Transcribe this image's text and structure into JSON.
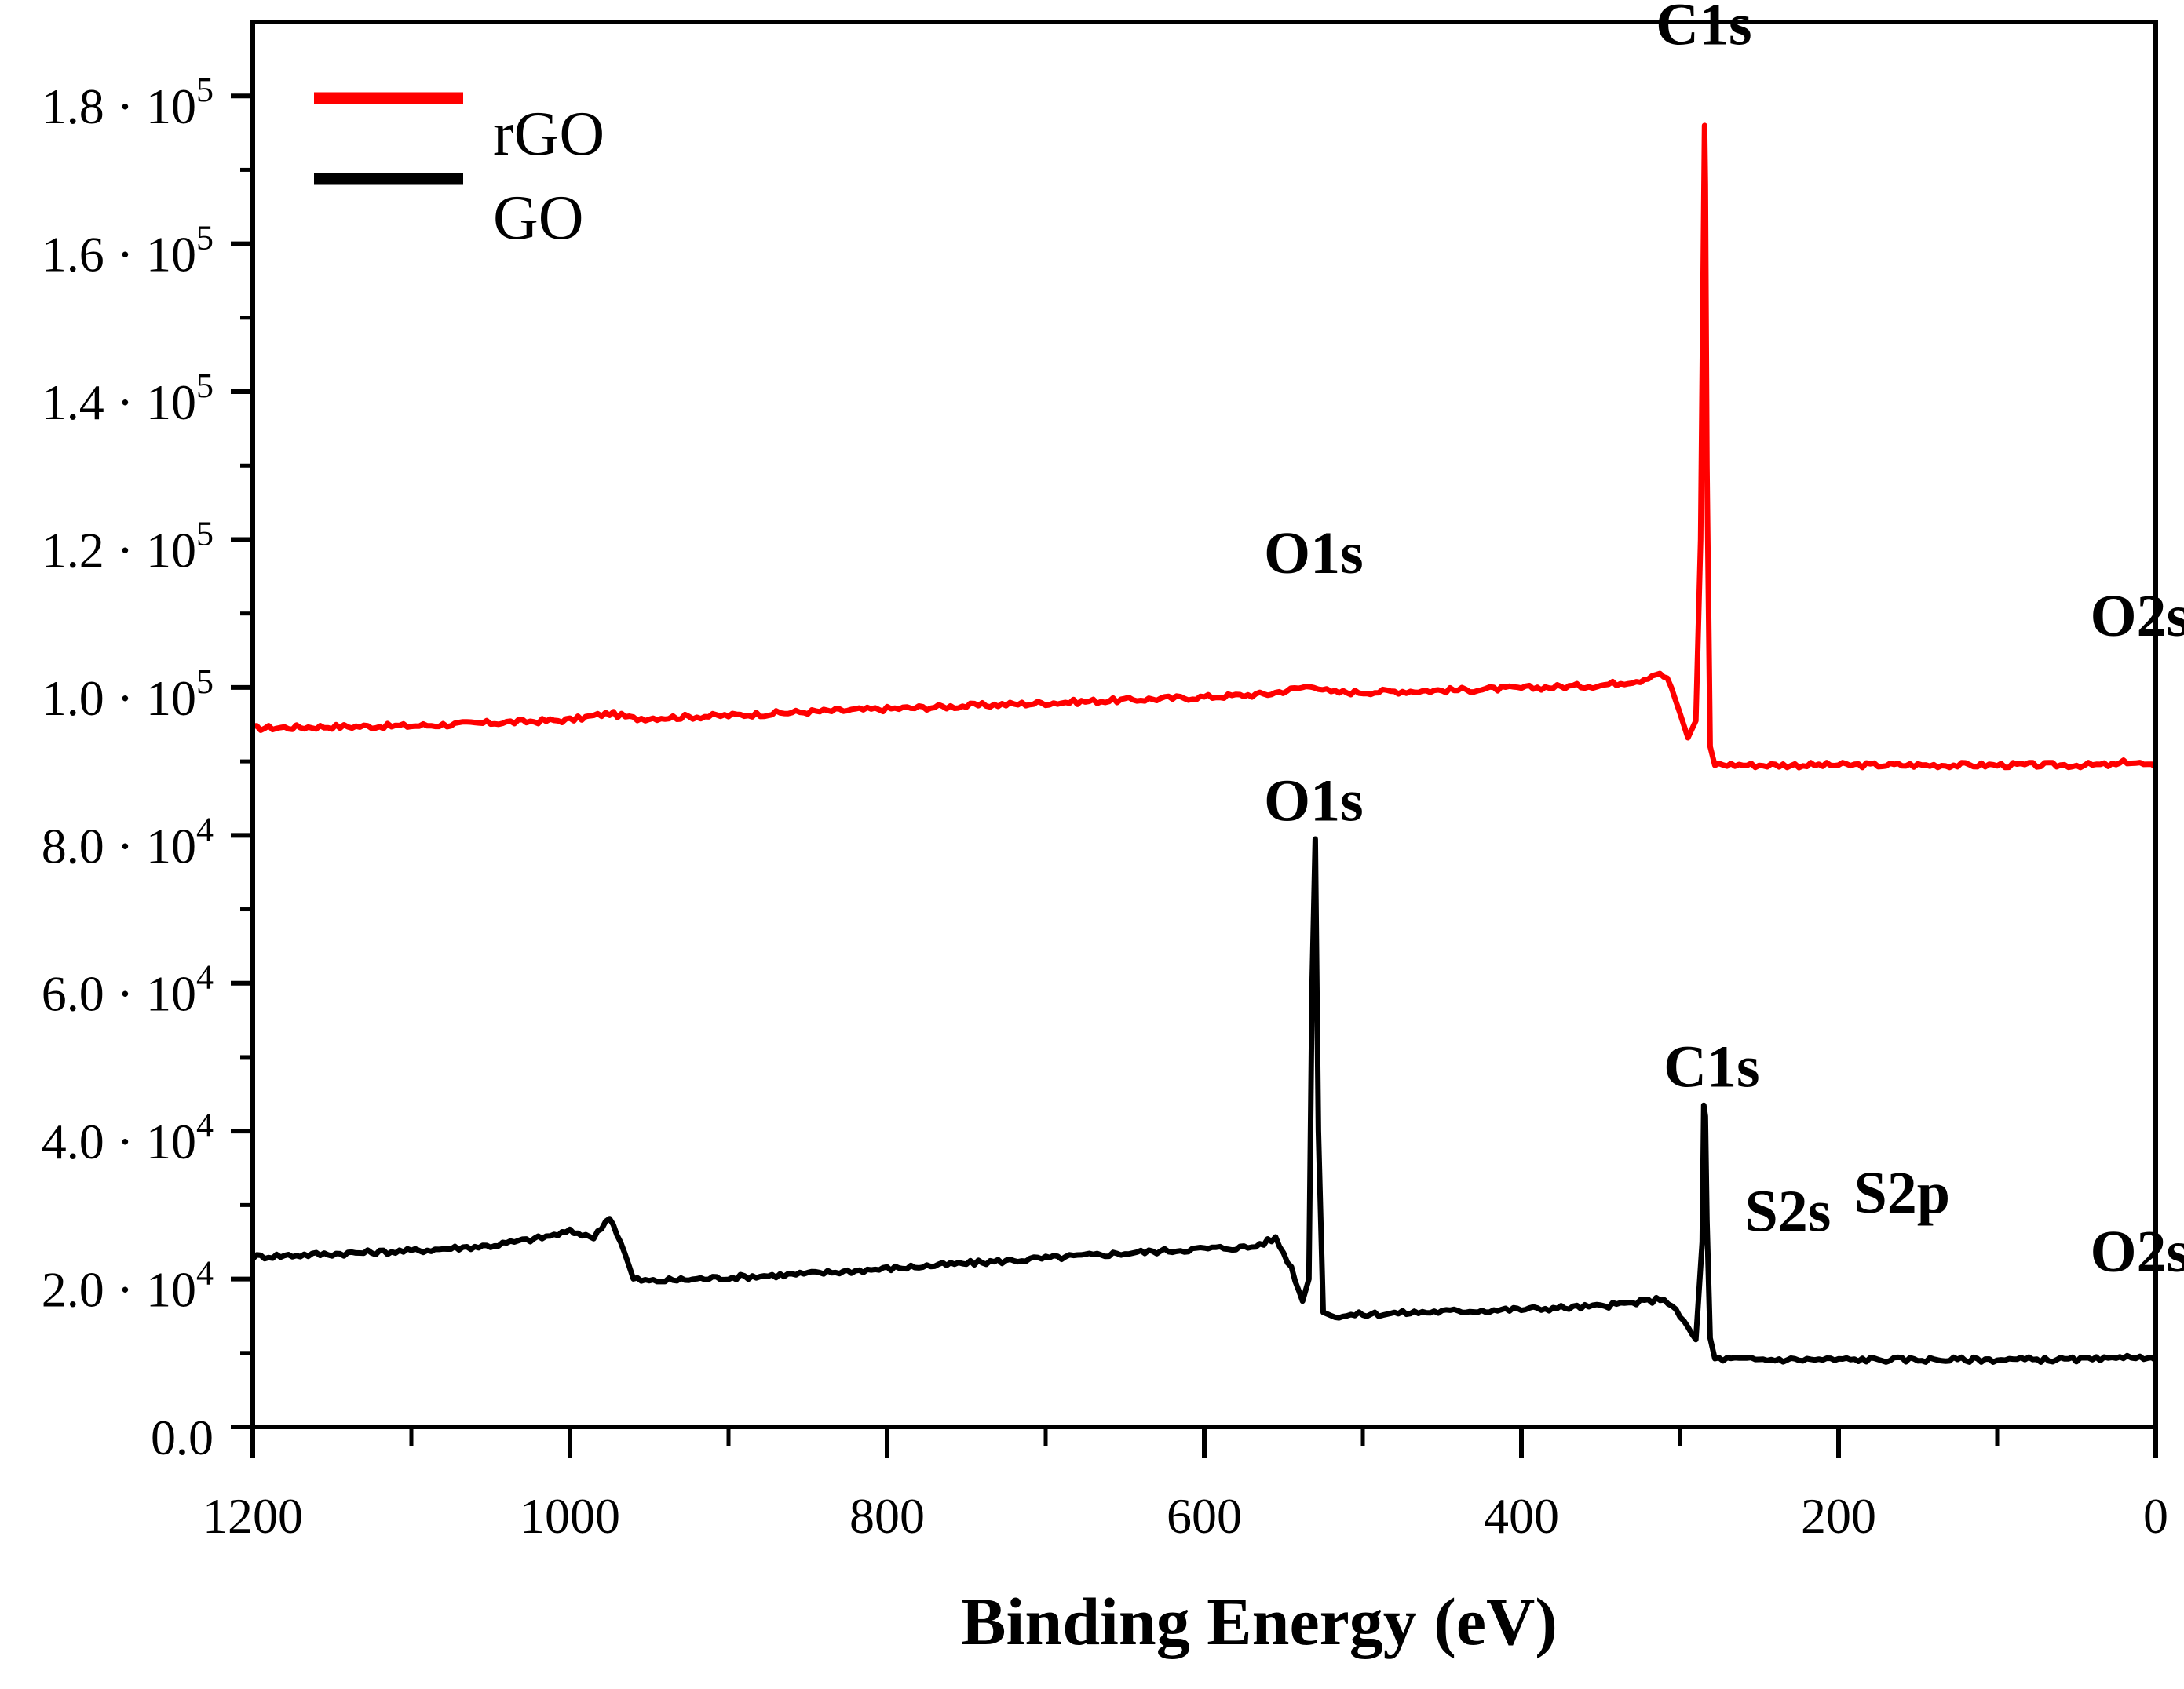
{
  "chart_data": {
    "type": "line",
    "title": "",
    "xlabel": "Binding Energy (eV)",
    "ylabel": "",
    "xlim": [
      1200,
      0
    ],
    "ylim": [
      0,
      190000
    ],
    "x_reversed": true,
    "grid": false,
    "legend_position": "top-left",
    "x_ticks": [
      {
        "value": 1200,
        "label": "1200"
      },
      {
        "value": 1000,
        "label": "1000"
      },
      {
        "value": 800,
        "label": "800"
      },
      {
        "value": 600,
        "label": "600"
      },
      {
        "value": 400,
        "label": "400"
      },
      {
        "value": 200,
        "label": "200"
      },
      {
        "value": 0,
        "label": "0"
      }
    ],
    "y_ticks": [
      {
        "value": 0,
        "mantissa": "0.0",
        "exponent": ""
      },
      {
        "value": 20000,
        "mantissa": "2.0 · 10",
        "exponent": "4"
      },
      {
        "value": 40000,
        "mantissa": "4.0 · 10",
        "exponent": "4"
      },
      {
        "value": 60000,
        "mantissa": "6.0 · 10",
        "exponent": "4"
      },
      {
        "value": 80000,
        "mantissa": "8.0 · 10",
        "exponent": "4"
      },
      {
        "value": 100000,
        "mantissa": "1.0 · 10",
        "exponent": "5"
      },
      {
        "value": 120000,
        "mantissa": "1.2 · 10",
        "exponent": "5"
      },
      {
        "value": 140000,
        "mantissa": "1.4 · 10",
        "exponent": "5"
      },
      {
        "value": 160000,
        "mantissa": "1.6 · 10",
        "exponent": "5"
      },
      {
        "value": 180000,
        "mantissa": "1.8 · 10",
        "exponent": "5"
      }
    ],
    "series": [
      {
        "name": "rGO",
        "color": "#ff0000",
        "x": [
          1200,
          1150,
          1100,
          1050,
          1000,
          975,
          960,
          900,
          850,
          800,
          750,
          700,
          650,
          600,
          560,
          531,
          520,
          450,
          400,
          350,
          325,
          315,
          308,
          300,
          295,
          290,
          287,
          285,
          284.5,
          284,
          283,
          281,
          278,
          250,
          200,
          150,
          100,
          50,
          25,
          18,
          10,
          0
        ],
        "y": [
          94500,
          94700,
          94800,
          95200,
          95600,
          96500,
          95800,
          96200,
          96700,
          97100,
          97500,
          97900,
          98300,
          98700,
          99100,
          100300,
          99300,
          99600,
          99900,
          100300,
          101000,
          101900,
          101300,
          96500,
          93200,
          95500,
          120000,
          165000,
          176000,
          168000,
          130000,
          92000,
          89600,
          89500,
          89500,
          89500,
          89500,
          89500,
          89500,
          90000,
          89700,
          89200
        ]
      },
      {
        "name": "GO",
        "color": "#000000",
        "x": [
          1200,
          1150,
          1100,
          1050,
          1020,
          1000,
          990,
          985,
          975,
          968,
          960,
          950,
          900,
          850,
          800,
          750,
          700,
          650,
          600,
          570,
          555,
          545,
          538,
          534,
          532,
          530,
          528,
          525,
          520,
          500,
          450,
          400,
          350,
          320,
          310,
          300,
          290,
          286,
          285,
          284,
          283,
          281,
          278,
          250,
          200,
          150,
          100,
          50,
          25,
          18,
          10,
          0
        ],
        "y": [
          23000,
          23400,
          23800,
          24500,
          25500,
          26400,
          26000,
          25500,
          28500,
          25000,
          20000,
          19700,
          20200,
          20700,
          21400,
          22100,
          22800,
          23500,
          24100,
          24300,
          25500,
          21500,
          17000,
          20000,
          60000,
          79500,
          40000,
          15500,
          15000,
          15200,
          15600,
          15900,
          16300,
          17000,
          17400,
          15000,
          11800,
          25000,
          43500,
          42000,
          28000,
          12000,
          9200,
          9100,
          9100,
          9100,
          9100,
          9100,
          9100,
          9800,
          9300,
          9000
        ]
      }
    ],
    "annotations": [
      {
        "text": "C1s",
        "x": 285,
        "y": 187000,
        "series": "rGO"
      },
      {
        "text": "O1s",
        "x": 531,
        "y": 115500,
        "series": "rGO"
      },
      {
        "text": "O2s",
        "x": 10,
        "y": 107000,
        "series": "rGO"
      },
      {
        "text": "O1s",
        "x": 531,
        "y": 82000,
        "series": "GO"
      },
      {
        "text": "C1s",
        "x": 280,
        "y": 46000,
        "series": "GO"
      },
      {
        "text": "S2s",
        "x": 232,
        "y": 26500,
        "series": "GO"
      },
      {
        "text": "S2p",
        "x": 160,
        "y": 29000,
        "series": "GO"
      },
      {
        "text": "O2s",
        "x": 10,
        "y": 21000,
        "series": "GO"
      }
    ]
  }
}
